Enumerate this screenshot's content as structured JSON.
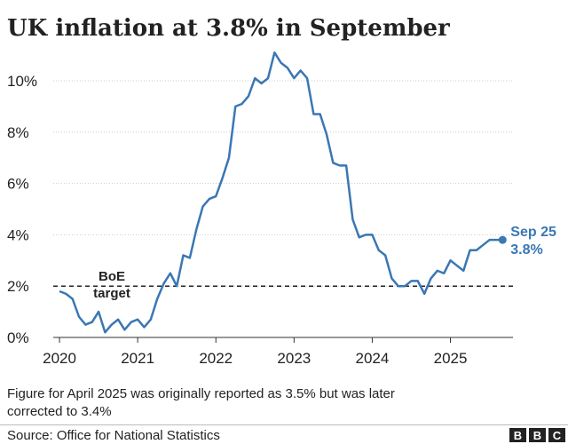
{
  "chart_data": {
    "type": "line",
    "title": "UK inflation at 3.8% in September",
    "x": [
      2020,
      2020.083,
      2020.167,
      2020.25,
      2020.333,
      2020.417,
      2020.5,
      2020.583,
      2020.667,
      2020.75,
      2020.833,
      2020.917,
      2021,
      2021.083,
      2021.167,
      2021.25,
      2021.333,
      2021.417,
      2021.5,
      2021.583,
      2021.667,
      2021.75,
      2021.833,
      2021.917,
      2022,
      2022.083,
      2022.167,
      2022.25,
      2022.333,
      2022.417,
      2022.5,
      2022.583,
      2022.667,
      2022.75,
      2022.833,
      2022.917,
      2023,
      2023.083,
      2023.167,
      2023.25,
      2023.333,
      2023.417,
      2023.5,
      2023.583,
      2023.667,
      2023.75,
      2023.833,
      2023.917,
      2024,
      2024.083,
      2024.167,
      2024.25,
      2024.333,
      2024.417,
      2024.5,
      2024.583,
      2024.667,
      2024.75,
      2024.833,
      2024.917,
      2025,
      2025.083,
      2025.167,
      2025.25,
      2025.333,
      2025.417,
      2025.5,
      2025.583,
      2025.667
    ],
    "series": [
      {
        "color": "#3a77b3",
        "values": [
          1.8,
          1.7,
          1.5,
          0.8,
          0.5,
          0.6,
          1.0,
          0.2,
          0.5,
          0.7,
          0.3,
          0.6,
          0.7,
          0.4,
          0.7,
          1.5,
          2.1,
          2.5,
          2.0,
          3.2,
          3.1,
          4.2,
          5.1,
          5.4,
          5.5,
          6.2,
          7.0,
          9.0,
          9.1,
          9.4,
          10.1,
          9.9,
          10.1,
          11.1,
          10.7,
          10.5,
          10.1,
          10.4,
          10.1,
          8.7,
          8.7,
          7.9,
          6.8,
          6.7,
          6.7,
          4.6,
          3.9,
          4.0,
          4.0,
          3.4,
          3.2,
          2.3,
          2.0,
          2.0,
          2.2,
          2.2,
          1.7,
          2.3,
          2.6,
          2.5,
          3.0,
          2.8,
          2.6,
          3.4,
          3.4,
          3.6,
          3.8,
          3.8,
          3.8
        ],
        "value_labels": [
          null,
          null,
          null,
          null,
          null,
          null,
          null,
          null,
          null,
          null,
          null,
          null,
          null,
          null,
          null,
          null,
          null,
          null,
          null,
          null,
          null,
          null,
          null,
          null,
          null,
          null,
          null,
          null,
          null,
          null,
          null,
          null,
          null,
          null,
          null,
          null,
          null,
          null,
          null,
          null,
          null,
          null,
          null,
          null,
          null,
          null,
          null,
          null,
          null,
          null,
          null,
          null,
          null,
          null,
          null,
          null,
          null,
          null,
          null,
          null,
          null,
          null,
          null,
          null,
          null,
          null,
          null,
          null,
          "3.8%"
        ]
      }
    ],
    "end_label": "Sep 25",
    "target": {
      "value": 2,
      "label": [
        "BoE",
        "target"
      ]
    },
    "xlim": [
      2019.92,
      2025.8
    ],
    "xticks": [
      2020,
      2021,
      2022,
      2023,
      2024,
      2025
    ],
    "ylim": [
      0,
      11.2
    ],
    "yticks": [
      {
        "value": 0,
        "label": "0%"
      },
      {
        "value": 2,
        "label": "2%"
      },
      {
        "value": 4,
        "label": "4%"
      },
      {
        "value": 6,
        "label": "6%"
      },
      {
        "value": 8,
        "label": "8%"
      },
      {
        "value": 10,
        "label": "10%"
      }
    ],
    "grid": true,
    "note": [
      "Figure for April 2025 was originally reported as 3.5% but was later",
      "corrected to 3.4%"
    ],
    "source": "Source: Office for National Statistics",
    "logo": [
      "B",
      "B",
      "C"
    ]
  }
}
